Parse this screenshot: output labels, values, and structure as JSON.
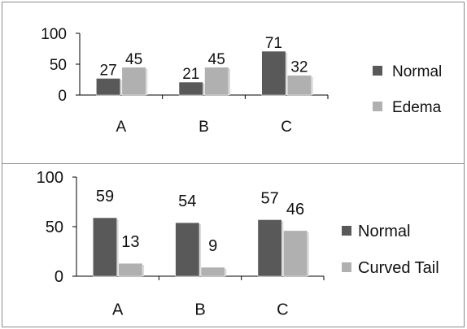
{
  "chart_data": [
    {
      "type": "bar",
      "categories": [
        "A",
        "B",
        "C"
      ],
      "series": [
        {
          "name": "Normal",
          "values": [
            27,
            21,
            71
          ],
          "color": "#595959"
        },
        {
          "name": "Edema",
          "values": [
            45,
            45,
            32
          ],
          "color": "#b0b0b0"
        }
      ],
      "ylim": [
        0,
        100
      ],
      "yticks": [
        "100",
        "50",
        "0"
      ],
      "title": "",
      "xlabel": "",
      "ylabel": "",
      "legend": "right",
      "grid": false
    },
    {
      "type": "bar",
      "categories": [
        "A",
        "B",
        "C"
      ],
      "series": [
        {
          "name": "Normal",
          "values": [
            59,
            54,
            57
          ],
          "color": "#595959"
        },
        {
          "name": "Curved Tail",
          "values": [
            13,
            9,
            46
          ],
          "color": "#b0b0b0"
        }
      ],
      "ylim": [
        0,
        100
      ],
      "yticks": [
        "100",
        "50",
        "0"
      ],
      "title": "",
      "xlabel": "",
      "ylabel": "",
      "legend": "right",
      "grid": false
    }
  ]
}
